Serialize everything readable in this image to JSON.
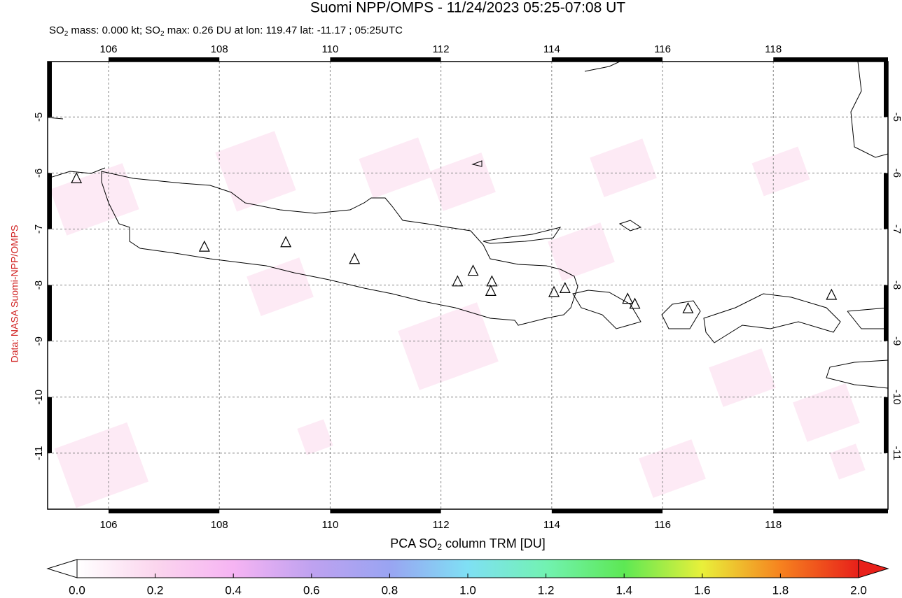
{
  "title": "Suomi NPP/OMPS - 11/24/2023 05:25-07:08 UT",
  "subtitle": [
    "SO",
    "2",
    " mass: 0.000 kt; SO",
    "2",
    " max: 0.26 DU at lon: 119.47 lat: -11.17 ; 05:25UTC"
  ],
  "side_label": "Data: NASA Suomi-NPP/OMPS",
  "map": {
    "xlim": [
      104.9,
      120.07
    ],
    "ylim": [
      -12.0,
      -4.01
    ],
    "xticks": [
      106,
      108,
      110,
      112,
      114,
      116,
      118
    ],
    "yticks": [
      -5,
      -6,
      -7,
      -8,
      -9,
      -10,
      -11
    ],
    "volcanoes": {
      "lon": [
        105.42,
        107.73,
        109.2,
        110.44,
        112.3,
        112.58,
        112.92,
        112.9,
        114.04,
        114.24,
        115.37,
        115.5,
        116.46,
        119.05
      ],
      "lat": [
        -6.1,
        -7.32,
        -7.24,
        -7.54,
        -7.94,
        -7.75,
        -7.94,
        -8.11,
        -8.13,
        -8.06,
        -8.25,
        -8.34,
        -8.42,
        -8.18
      ]
    }
  },
  "colorbar": {
    "label": [
      "PCA SO",
      "2",
      " column TRM [DU]"
    ],
    "lim": [
      0,
      2
    ],
    "ticks": [
      {
        "value": 0,
        "label": "0.0"
      },
      {
        "value": 0.2,
        "label": "0.2"
      },
      {
        "value": 0.4,
        "label": "0.4"
      },
      {
        "value": 0.6,
        "label": "0.6"
      },
      {
        "value": 0.8,
        "label": "0.8"
      },
      {
        "value": 1,
        "label": "1.0"
      },
      {
        "value": 1.2,
        "label": "1.2"
      },
      {
        "value": 1.4,
        "label": "1.4"
      },
      {
        "value": 1.6,
        "label": "1.6"
      },
      {
        "value": 1.8,
        "label": "1.8"
      },
      {
        "value": 2,
        "label": "2.0"
      }
    ]
  }
}
